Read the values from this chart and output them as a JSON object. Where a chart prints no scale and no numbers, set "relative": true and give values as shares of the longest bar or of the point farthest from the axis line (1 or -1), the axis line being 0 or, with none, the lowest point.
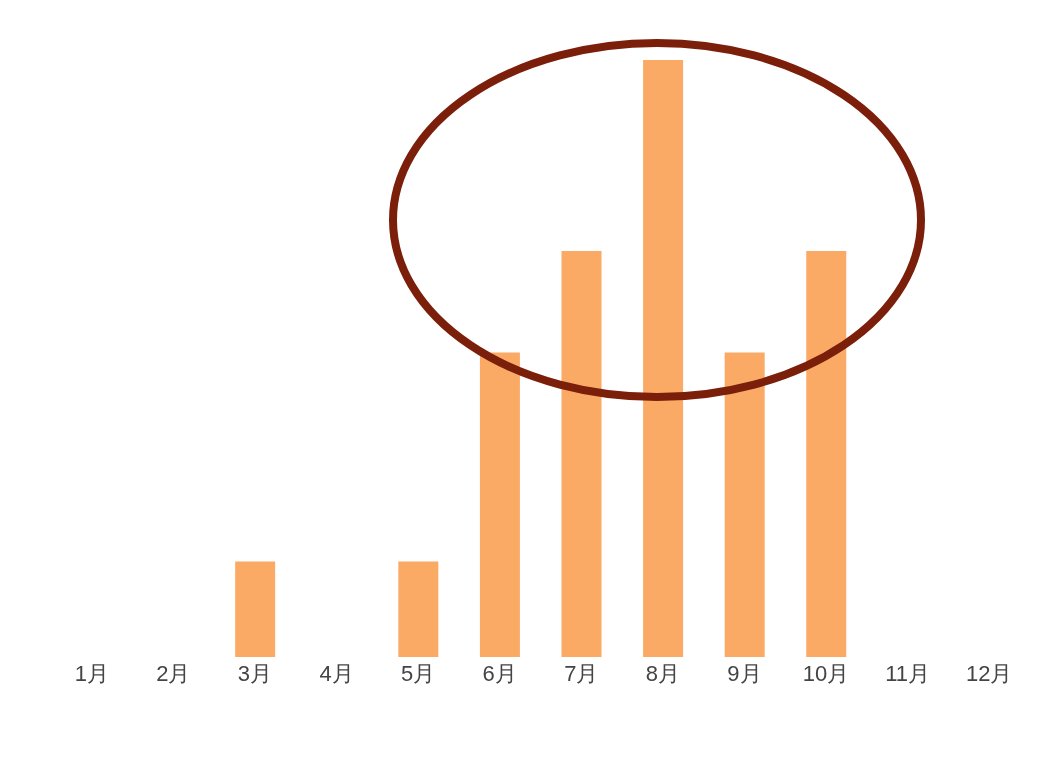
{
  "chart_data": {
    "type": "bar",
    "relative": true,
    "categories": [
      "1月",
      "2月",
      "3月",
      "4月",
      "5月",
      "6月",
      "7月",
      "8月",
      "9月",
      "10月",
      "11月",
      "12月"
    ],
    "values": [
      0,
      0,
      0.16,
      0,
      0.16,
      0.51,
      0.68,
      1,
      0.51,
      0.68,
      0,
      0
    ],
    "color": "#fbaa66",
    "grid": false,
    "legend": false
  }
}
